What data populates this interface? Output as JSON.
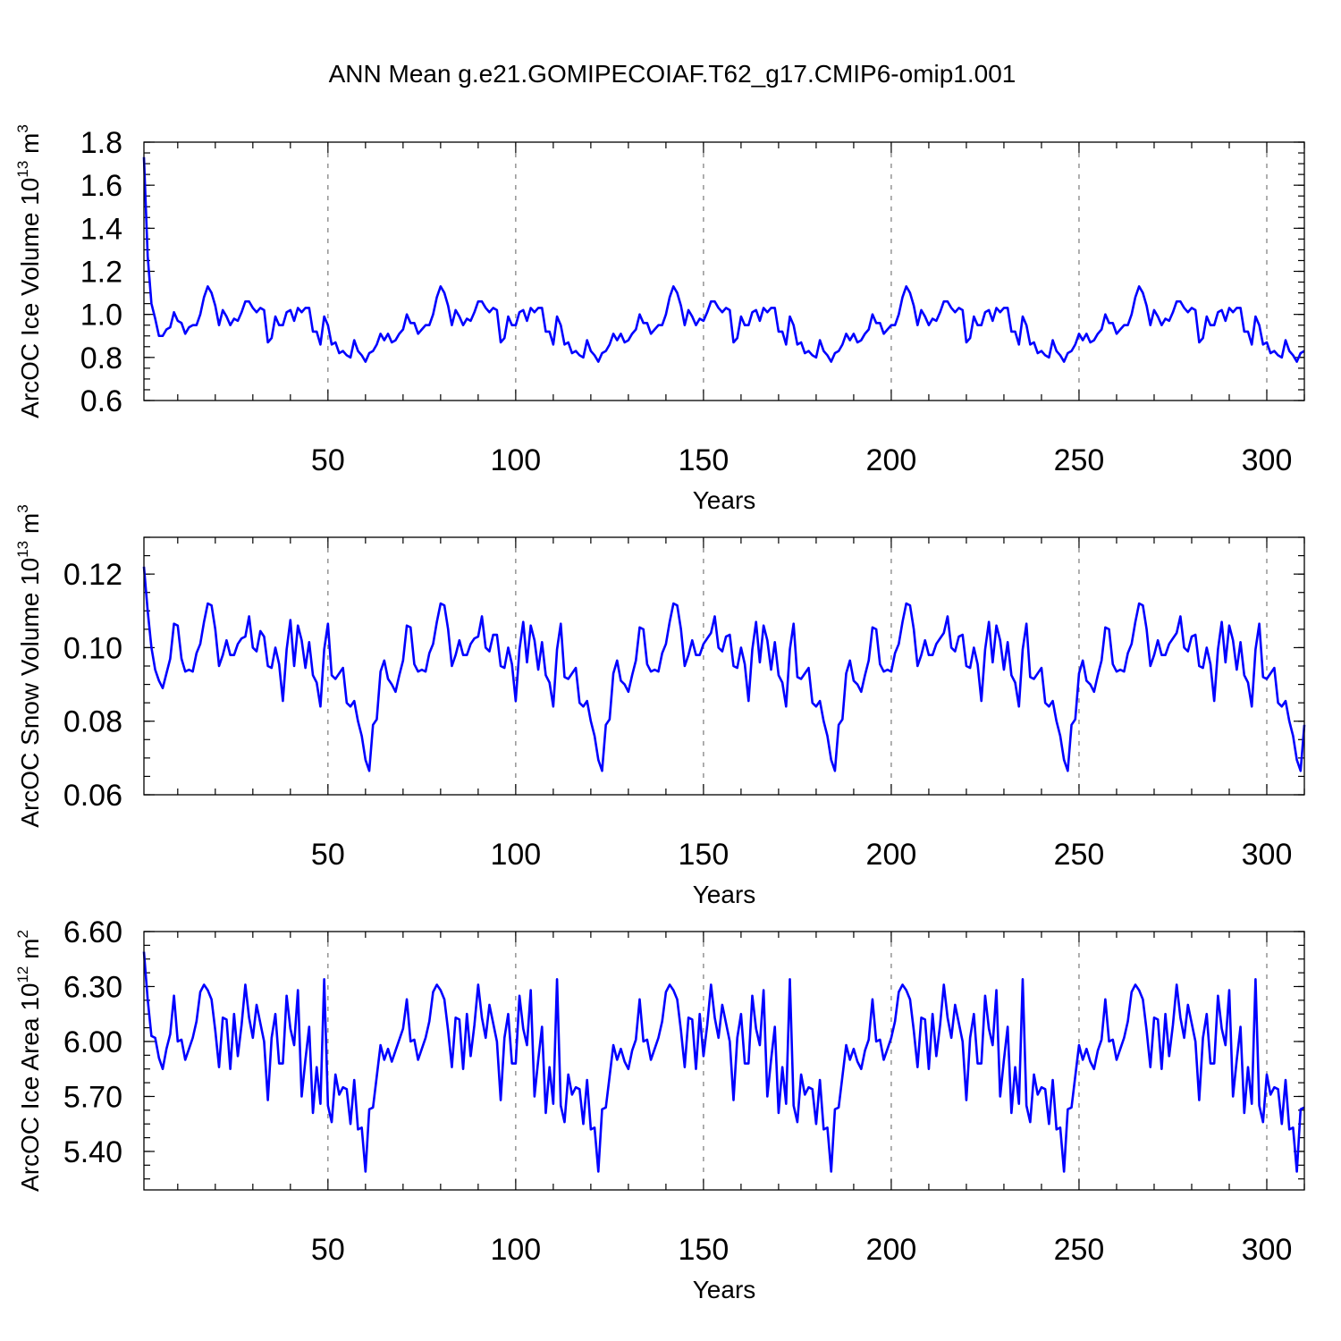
{
  "title": "ANN Mean g.e21.GOMIPECOIAF.T62_g17.CMIP6-omip1.001",
  "colors": {
    "line": "#0000ff",
    "grid": "#7a7a7a",
    "axis": "#000000"
  },
  "chart_data": [
    {
      "type": "line",
      "title": "ANN Mean g.e21.GOMIPECOIAF.T62_g17.CMIP6-omip1.001",
      "xlabel": "Years",
      "ylabel": {
        "prefix": "ArcOC Ice Volume 10",
        "exp": "13",
        "unit": " m",
        "unit_exp": "3"
      },
      "xlim": [
        1,
        310
      ],
      "ylim": [
        0.6,
        1.8
      ],
      "xticks": [
        50,
        100,
        150,
        200,
        250,
        300
      ],
      "yticks": [
        0.6,
        0.8,
        1.0,
        1.2,
        1.4,
        1.6,
        1.8
      ],
      "ytick_labels": [
        "0.6",
        "0.8",
        "1.0",
        "1.2",
        "1.4",
        "1.6",
        "1.8"
      ],
      "yminor": 0.05,
      "grid": "vertical dashed at x ticks",
      "series": [
        {
          "name": "ArcOC Ice Volume",
          "x_start": 1,
          "x_step": 1,
          "values": [
            1.73,
            1.27,
            1.05,
            0.98,
            0.9,
            0.9,
            0.93,
            0.94,
            1.01,
            0.97,
            0.96,
            0.91,
            0.94,
            0.95,
            0.95,
            1.0,
            1.08,
            1.13,
            1.1,
            1.04,
            0.95,
            1.02,
            0.99,
            0.95,
            0.98,
            0.97,
            1.01,
            1.06,
            1.06,
            1.03,
            1.01,
            1.03,
            1.02,
            0.87,
            0.89,
            0.99,
            0.95,
            0.95,
            1.01,
            1.02,
            0.97,
            1.03,
            1.01,
            1.03,
            1.03,
            0.92,
            0.92,
            0.86,
            0.99,
            0.95,
            0.86,
            0.87,
            0.82,
            0.83,
            0.81,
            0.8,
            0.88,
            0.83,
            0.81,
            0.78,
            0.82,
            0.83,
            0.86,
            0.91,
            0.88,
            0.91,
            0.87,
            0.88,
            0.91,
            0.93,
            1.0,
            0.96,
            0.96,
            0.91,
            0.93,
            0.95,
            0.95,
            1.0,
            1.08,
            1.13,
            1.1,
            1.04,
            0.95,
            1.02,
            0.99,
            0.95,
            0.98,
            0.97,
            1.01,
            1.06,
            1.06,
            1.03,
            1.01,
            1.03,
            1.02,
            0.87,
            0.89,
            0.99,
            0.95,
            0.95,
            1.01,
            1.02,
            0.97,
            1.03,
            1.01,
            1.03,
            1.03,
            0.92,
            0.92,
            0.86,
            0.99,
            0.95,
            0.86,
            0.87,
            0.82,
            0.83,
            0.81,
            0.8,
            0.88,
            0.83,
            0.81,
            0.78,
            0.82,
            0.83,
            0.86,
            0.91,
            0.88,
            0.91,
            0.87,
            0.88,
            0.91,
            0.93,
            1.0,
            0.96,
            0.96,
            0.91,
            0.93,
            0.95,
            0.95,
            1.0,
            1.08,
            1.13,
            1.1,
            1.04,
            0.95,
            1.02,
            0.99,
            0.95,
            0.98,
            0.97,
            1.01,
            1.06,
            1.06,
            1.03,
            1.01,
            1.03,
            1.02,
            0.87,
            0.89,
            0.99,
            0.95,
            0.95,
            1.01,
            1.02,
            0.97,
            1.03,
            1.01,
            1.03,
            1.03,
            0.92,
            0.92,
            0.86,
            0.99,
            0.95,
            0.86,
            0.87,
            0.82,
            0.83,
            0.81,
            0.8,
            0.88,
            0.83,
            0.81,
            0.78,
            0.82,
            0.83,
            0.86,
            0.91,
            0.88,
            0.91,
            0.87,
            0.88,
            0.91,
            0.93,
            1.0,
            0.96,
            0.96,
            0.91,
            0.93,
            0.95,
            0.95,
            1.0,
            1.08,
            1.13,
            1.1,
            1.04,
            0.95,
            1.02,
            0.99,
            0.95,
            0.98,
            0.97,
            1.01,
            1.06,
            1.06,
            1.03,
            1.01,
            1.03,
            1.02,
            0.87,
            0.89,
            0.99,
            0.95,
            0.95,
            1.01,
            1.02,
            0.97,
            1.03,
            1.01,
            1.03,
            1.03,
            0.92,
            0.92,
            0.86,
            0.99,
            0.95,
            0.86,
            0.87,
            0.82,
            0.83,
            0.81,
            0.8,
            0.88,
            0.83,
            0.81,
            0.78,
            0.82,
            0.83,
            0.86,
            0.91,
            0.88,
            0.91,
            0.87,
            0.88,
            0.91,
            0.93,
            1.0,
            0.96,
            0.96,
            0.91,
            0.93,
            0.95,
            0.95,
            1.0,
            1.08,
            1.13,
            1.1,
            1.04,
            0.95,
            1.02,
            0.99,
            0.95,
            0.98,
            0.97,
            1.01,
            1.06,
            1.06,
            1.03,
            1.01,
            1.03,
            1.02,
            0.87,
            0.89,
            0.99,
            0.95,
            0.95,
            1.01,
            1.02,
            0.97,
            1.03,
            1.01,
            1.03,
            1.03,
            0.92,
            0.92,
            0.86,
            0.99,
            0.95,
            0.86,
            0.87,
            0.82,
            0.83,
            0.81,
            0.8,
            0.88,
            0.83,
            0.81,
            0.78,
            0.82,
            0.83
          ]
        }
      ]
    },
    {
      "type": "line",
      "xlabel": "Years",
      "ylabel": {
        "prefix": "ArcOC Snow Volume 10",
        "exp": "13",
        "unit": " m",
        "unit_exp": "3"
      },
      "xlim": [
        1,
        310
      ],
      "ylim": [
        0.06,
        0.13
      ],
      "xticks": [
        50,
        100,
        150,
        200,
        250,
        300
      ],
      "yticks": [
        0.06,
        0.08,
        0.1,
        0.12
      ],
      "ytick_labels": [
        "0.06",
        "0.08",
        "0.10",
        "0.12"
      ],
      "yminor": 0.005,
      "grid": "vertical dashed at x ticks",
      "series": [
        {
          "name": "ArcOC Snow Volume",
          "x_start": 1,
          "x_step": 1,
          "values": [
            0.122,
            0.11,
            0.1,
            0.094,
            0.091,
            0.089,
            0.093,
            0.097,
            0.1065,
            0.106,
            0.097,
            0.0935,
            0.094,
            0.0935,
            0.0985,
            0.101,
            0.107,
            0.112,
            0.1115,
            0.105,
            0.095,
            0.098,
            0.102,
            0.098,
            0.098,
            0.101,
            0.1025,
            0.103,
            0.1085,
            0.1,
            0.099,
            0.1045,
            0.103,
            0.095,
            0.0945,
            0.1,
            0.0955,
            0.0855,
            0.0995,
            0.1075,
            0.095,
            0.106,
            0.102,
            0.0945,
            0.1015,
            0.0925,
            0.0905,
            0.084,
            0.0995,
            0.1065,
            0.0925,
            0.0915,
            0.093,
            0.0945,
            0.085,
            0.084,
            0.0855,
            0.08,
            0.076,
            0.0695,
            0.0665,
            0.079,
            0.0805,
            0.0935,
            0.0965,
            0.0915,
            0.09,
            0.088,
            0.0925,
            0.0965,
            0.106,
            0.1055,
            0.0955,
            0.0935,
            0.094,
            0.0935,
            0.0985,
            0.101,
            0.107,
            0.112,
            0.1115,
            0.105,
            0.095,
            0.098,
            0.102,
            0.098,
            0.098,
            0.101,
            0.1025,
            0.103,
            0.1085,
            0.1,
            0.099,
            0.1035,
            0.1035,
            0.095,
            0.0945,
            0.1,
            0.0955,
            0.0855,
            0.0995,
            0.107,
            0.096,
            0.106,
            0.102,
            0.094,
            0.1015,
            0.0925,
            0.0905,
            0.084,
            0.0995,
            0.1065,
            0.092,
            0.0915,
            0.093,
            0.0945,
            0.085,
            0.084,
            0.0855,
            0.08,
            0.076,
            0.0695,
            0.0665,
            0.079,
            0.0805,
            0.093,
            0.0965,
            0.091,
            0.09,
            0.088,
            0.0925,
            0.0965,
            0.1055,
            0.105,
            0.0955,
            0.0935,
            0.094,
            0.0935,
            0.0985,
            0.101,
            0.107,
            0.112,
            0.1115,
            0.105,
            0.095,
            0.098,
            0.102,
            0.098,
            0.098,
            0.101,
            0.1025,
            0.104,
            0.1085,
            0.1,
            0.099,
            0.103,
            0.1035,
            0.095,
            0.0945,
            0.1,
            0.0955,
            0.0855,
            0.0995,
            0.107,
            0.096,
            0.106,
            0.102,
            0.094,
            0.1015,
            0.0925,
            0.0905,
            0.084,
            0.0995,
            0.1065,
            0.092,
            0.0915,
            0.093,
            0.0945,
            0.085,
            0.084,
            0.0855,
            0.08,
            0.076,
            0.0695,
            0.0665,
            0.079,
            0.0805,
            0.093,
            0.0965,
            0.091,
            0.09,
            0.088,
            0.0925,
            0.0965,
            0.1055,
            0.105,
            0.0955,
            0.0935,
            0.094,
            0.0935,
            0.0985,
            0.101,
            0.107,
            0.112,
            0.1115,
            0.105,
            0.095,
            0.098,
            0.102,
            0.098,
            0.098,
            0.101,
            0.1025,
            0.104,
            0.1085,
            0.1,
            0.099,
            0.103,
            0.1035,
            0.095,
            0.0945,
            0.1,
            0.0955,
            0.0855,
            0.0995,
            0.107,
            0.096,
            0.106,
            0.102,
            0.094,
            0.1015,
            0.0925,
            0.0905,
            0.084,
            0.0995,
            0.1065,
            0.092,
            0.0915,
            0.093,
            0.0945,
            0.085,
            0.084,
            0.0855,
            0.08,
            0.076,
            0.0695,
            0.0665,
            0.079,
            0.0805,
            0.093,
            0.0965,
            0.091,
            0.09,
            0.088,
            0.0925,
            0.0965,
            0.1055,
            0.105,
            0.0955,
            0.0935,
            0.094,
            0.0935,
            0.0985,
            0.101,
            0.107,
            0.112,
            0.1115,
            0.105,
            0.095,
            0.098,
            0.102,
            0.098,
            0.098,
            0.101,
            0.1025,
            0.104,
            0.1085,
            0.1,
            0.099,
            0.103,
            0.1035,
            0.095,
            0.0945,
            0.1,
            0.0955,
            0.0855,
            0.0995,
            0.107,
            0.096,
            0.106,
            0.102,
            0.094,
            0.1015,
            0.0925,
            0.0905,
            0.084,
            0.0995,
            0.1065,
            0.092,
            0.0915,
            0.093,
            0.0945,
            0.085,
            0.084,
            0.0855,
            0.08,
            0.076,
            0.0695,
            0.0665,
            0.079
          ]
        }
      ]
    },
    {
      "type": "line",
      "xlabel": "Years",
      "ylabel": {
        "prefix": "ArcOC Ice Area 10",
        "exp": "12",
        "unit": " m",
        "unit_exp": "2"
      },
      "xlim": [
        1,
        310
      ],
      "ylim": [
        5.19,
        6.6
      ],
      "xticks": [
        50,
        100,
        150,
        200,
        250,
        300
      ],
      "yticks": [
        5.4,
        5.7,
        6.0,
        6.3,
        6.6
      ],
      "ytick_labels": [
        "5.40",
        "5.70",
        "6.00",
        "6.30",
        "6.60"
      ],
      "yminor": 0.075,
      "grid": "vertical dashed at x ticks",
      "series": [
        {
          "name": "ArcOC Ice Area",
          "x_start": 1,
          "x_step": 1,
          "values": [
            6.49,
            6.23,
            6.03,
            6.02,
            5.91,
            5.85,
            5.96,
            6.04,
            6.25,
            6.0,
            6.01,
            5.9,
            5.96,
            6.02,
            6.11,
            6.27,
            6.31,
            6.28,
            6.23,
            6.06,
            5.86,
            6.13,
            6.12,
            5.85,
            6.15,
            5.92,
            6.09,
            6.31,
            6.13,
            6.02,
            6.2,
            6.1,
            6.0,
            5.68,
            6.02,
            6.15,
            5.88,
            5.88,
            6.25,
            6.07,
            5.98,
            6.28,
            5.7,
            5.9,
            6.08,
            5.61,
            5.86,
            5.66,
            6.34,
            5.65,
            5.56,
            5.82,
            5.71,
            5.75,
            5.74,
            5.55,
            5.79,
            5.52,
            5.53,
            5.29,
            5.63,
            5.64,
            5.81,
            5.98,
            5.9,
            5.96,
            5.89,
            5.95,
            6.01,
            6.07,
            6.23,
            6.0,
            6.01,
            5.9,
            5.96,
            6.02,
            6.11,
            6.27,
            6.31,
            6.28,
            6.23,
            6.06,
            5.86,
            6.13,
            6.12,
            5.85,
            6.15,
            5.92,
            6.09,
            6.31,
            6.13,
            6.02,
            6.2,
            6.1,
            6.0,
            5.68,
            6.02,
            6.15,
            5.88,
            5.88,
            6.25,
            6.07,
            5.98,
            6.28,
            5.7,
            5.9,
            6.08,
            5.61,
            5.86,
            5.66,
            6.34,
            5.65,
            5.56,
            5.82,
            5.71,
            5.75,
            5.74,
            5.55,
            5.79,
            5.52,
            5.53,
            5.29,
            5.63,
            5.64,
            5.81,
            5.98,
            5.9,
            5.96,
            5.89,
            5.85,
            5.95,
            6.01,
            6.23,
            6.0,
            6.01,
            5.9,
            5.96,
            6.02,
            6.11,
            6.27,
            6.31,
            6.28,
            6.23,
            6.06,
            5.86,
            6.13,
            6.12,
            5.85,
            6.15,
            5.92,
            6.09,
            6.31,
            6.13,
            6.02,
            6.2,
            6.1,
            6.0,
            5.68,
            6.02,
            6.15,
            5.88,
            5.88,
            6.25,
            6.07,
            5.98,
            6.28,
            5.7,
            5.9,
            6.08,
            5.61,
            5.86,
            5.66,
            6.34,
            5.65,
            5.56,
            5.82,
            5.71,
            5.75,
            5.74,
            5.55,
            5.79,
            5.52,
            5.53,
            5.29,
            5.63,
            5.64,
            5.81,
            5.98,
            5.9,
            5.96,
            5.89,
            5.85,
            5.95,
            6.01,
            6.23,
            6.0,
            6.01,
            5.9,
            5.96,
            6.02,
            6.11,
            6.27,
            6.31,
            6.28,
            6.23,
            6.06,
            5.86,
            6.13,
            6.12,
            5.85,
            6.15,
            5.92,
            6.09,
            6.31,
            6.13,
            6.02,
            6.2,
            6.1,
            6.0,
            5.68,
            6.02,
            6.15,
            5.88,
            5.88,
            6.25,
            6.07,
            5.98,
            6.28,
            5.7,
            5.9,
            6.08,
            5.61,
            5.86,
            5.66,
            6.34,
            5.65,
            5.56,
            5.82,
            5.71,
            5.75,
            5.74,
            5.55,
            5.79,
            5.52,
            5.53,
            5.29,
            5.63,
            5.64,
            5.81,
            5.98,
            5.9,
            5.96,
            5.89,
            5.85,
            5.95,
            6.01,
            6.23,
            6.0,
            6.01,
            5.9,
            5.96,
            6.02,
            6.11,
            6.27,
            6.31,
            6.28,
            6.23,
            6.06,
            5.86,
            6.13,
            6.12,
            5.85,
            6.15,
            5.92,
            6.09,
            6.31,
            6.13,
            6.02,
            6.2,
            6.1,
            6.0,
            5.68,
            6.02,
            6.15,
            5.88,
            5.88,
            6.25,
            6.07,
            5.98,
            6.28,
            5.7,
            5.9,
            6.08,
            5.61,
            5.86,
            5.66,
            6.34,
            5.65,
            5.56,
            5.82,
            5.71,
            5.75,
            5.74,
            5.55,
            5.79,
            5.52,
            5.53,
            5.29,
            5.63,
            5.64
          ]
        }
      ]
    }
  ]
}
